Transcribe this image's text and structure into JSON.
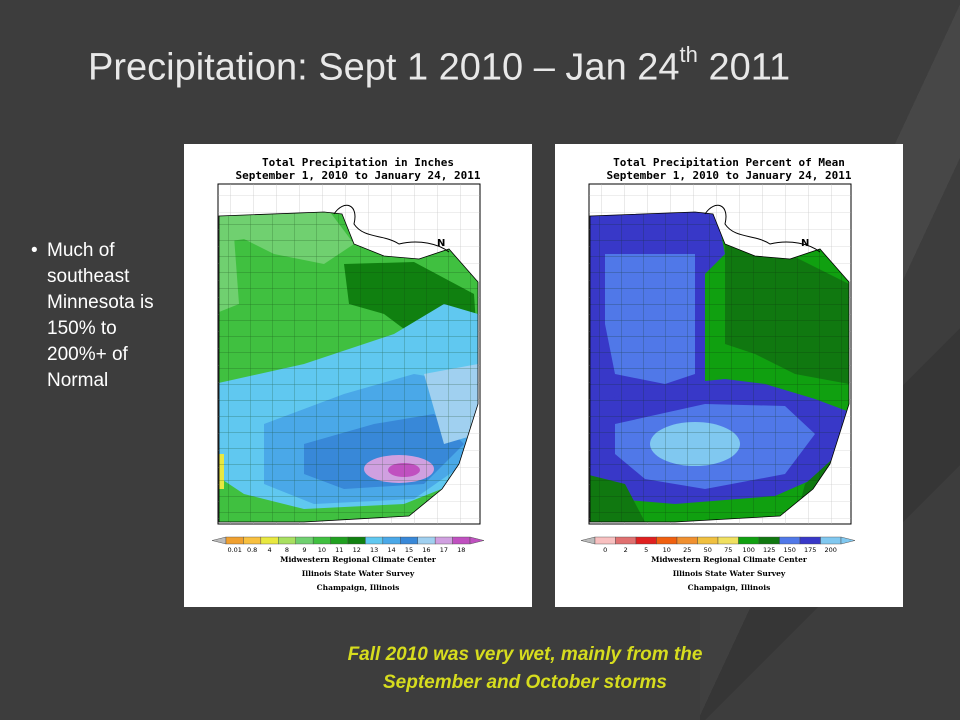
{
  "slide": {
    "title": "Precipitation: Sept 1 2010 – Jan 24",
    "title_sup": "th",
    "title_tail": " 2011",
    "bullet": "Much of southeast Minnesota is 150% to 200%+ of Normal",
    "caption_line1": "Fall 2010 was very wet, mainly from the",
    "caption_line2": "September and October storms"
  },
  "maps": [
    {
      "title_line1": "Total Precipitation in Inches",
      "title_line2": "September 1, 2010 to January 24, 2011",
      "legend_values": [
        "0.01",
        "0.8",
        "4",
        "8",
        "9",
        "10",
        "11",
        "12",
        "13",
        "14",
        "15",
        "16",
        "17",
        "18"
      ],
      "legend_colors": [
        "#f0a030",
        "#f8c040",
        "#e8e840",
        "#a8e060",
        "#70d070",
        "#40c040",
        "#20a020",
        "#108010",
        "#60c8f0",
        "#4aa8e8",
        "#3888d8",
        "#a0d0f0",
        "#d0a0e0",
        "#c050c0"
      ],
      "credit_line1": "Midwestern Regional Climate Center",
      "credit_line2": "Illinois State Water Survey",
      "credit_line3": "Champaign, Illinois",
      "north_arrow": "N"
    },
    {
      "title_line1": "Total Precipitation Percent of Mean",
      "title_line2": "September 1, 2010 to January 24, 2011",
      "legend_values": [
        "0",
        "2",
        "5",
        "10",
        "25",
        "50",
        "75",
        "100",
        "125",
        "150",
        "175",
        "200"
      ],
      "legend_colors": [
        "#f8c0c0",
        "#e07070",
        "#e02020",
        "#f06010",
        "#f09030",
        "#f0c040",
        "#f0e060",
        "#10a010",
        "#107810",
        "#5078e8",
        "#3838c8",
        "#80c8f0"
      ],
      "credit_line1": "Midwestern Regional Climate Center",
      "credit_line2": "Illinois State Water Survey",
      "credit_line3": "Champaign, Illinois",
      "north_arrow": "N"
    }
  ]
}
